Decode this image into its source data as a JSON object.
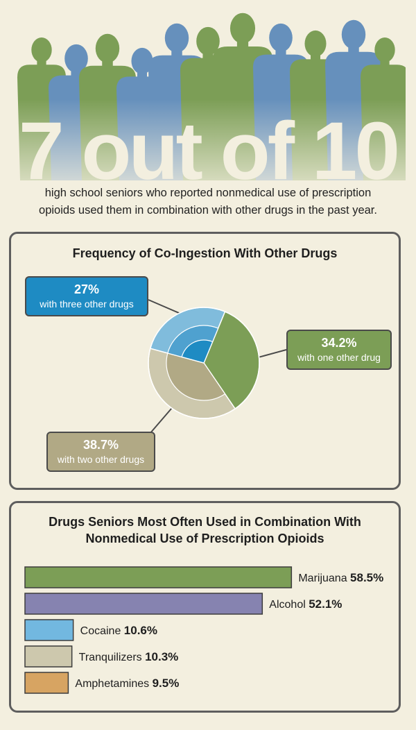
{
  "hero": {
    "headline": "7 out of 10",
    "subtitle_line1": "high school seniors who reported nonmedical use of prescription",
    "subtitle_line2": "opioids used them in combination with other drugs in the past year.",
    "colors": {
      "green": "#7c9e56",
      "blue": "#6690bc",
      "numeral": "#f3efdf"
    }
  },
  "pie_panel": {
    "title": "Frequency of Co-Ingestion With Other Drugs"
  },
  "bar_panel": {
    "title_line1": "Drugs Seniors Most Often Used in Combination With",
    "title_line2": "Nonmedical Use of Prescription Opioids"
  },
  "chart_data": [
    {
      "type": "pie",
      "title": "Frequency of Co-Ingestion With Other Drugs",
      "slices": [
        {
          "value": 34.2,
          "label_value": "34.2%",
          "label": "with one other drug",
          "color": "#7c9e56",
          "callout_color": "#7c9e56"
        },
        {
          "value": 38.7,
          "label_value": "38.7%",
          "label": "with two other drugs",
          "color": "#cdc8ad",
          "inner_color": "#b1a985",
          "callout_color": "#b1a985"
        },
        {
          "value": 27,
          "label_value": "27%",
          "label": "with three other drugs",
          "color": "#80bcdc",
          "mid_color": "#4fa1cf",
          "inner_color": "#1e8bc3",
          "callout_color": "#1e8bc3"
        }
      ]
    },
    {
      "type": "bar",
      "orientation": "horizontal",
      "title": "Drugs Seniors Most Often Used in Combination With Nonmedical Use of Prescription Opioids",
      "bars": [
        {
          "name": "Marijuana",
          "value": 58.5,
          "label_value": "58.5%",
          "color": "#7c9e56"
        },
        {
          "name": "Alcohol",
          "value": 52.1,
          "label_value": "52.1%",
          "color": "#8683b0"
        },
        {
          "name": "Cocaine",
          "value": 10.6,
          "label_value": "10.6%",
          "color": "#72b8e0"
        },
        {
          "name": "Tranquilizers",
          "value": 10.3,
          "label_value": "10.3%",
          "color": "#cdc8ad"
        },
        {
          "name": "Amphetamines",
          "value": 9.5,
          "label_value": "9.5%",
          "color": "#d7a462"
        }
      ]
    }
  ]
}
